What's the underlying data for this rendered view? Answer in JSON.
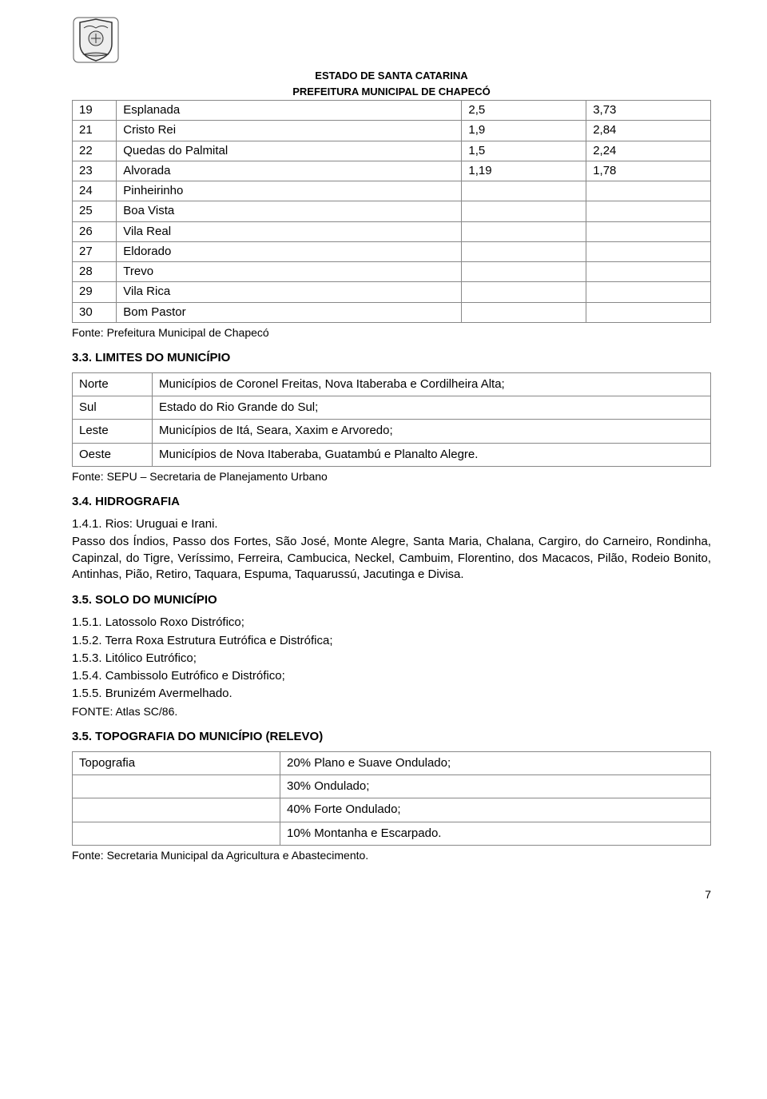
{
  "header": {
    "line1": "ESTADO DE SANTA CATARINA",
    "line2": "PREFEITURA MUNICIPAL DE CHAPECÓ"
  },
  "table1": {
    "rows": [
      [
        "19",
        "Esplanada",
        "2,5",
        "3,73"
      ],
      [
        "21",
        "Cristo Rei",
        "1,9",
        "2,84"
      ],
      [
        "22",
        "Quedas do Palmital",
        "1,5",
        "2,24"
      ],
      [
        "23",
        "Alvorada",
        "1,19",
        "1,78"
      ],
      [
        "24",
        "Pinheirinho",
        "",
        ""
      ],
      [
        "25",
        "Boa Vista",
        "",
        ""
      ],
      [
        "26",
        "Vila Real",
        "",
        ""
      ],
      [
        "27",
        "Eldorado",
        "",
        ""
      ],
      [
        "28",
        "Trevo",
        "",
        ""
      ],
      [
        "29",
        "Vila Rica",
        "",
        ""
      ],
      [
        "30",
        "Bom Pastor",
        "",
        ""
      ]
    ],
    "source": "Fonte: Prefeitura Municipal de Chapecó"
  },
  "sec33": {
    "title": "3.3.  LIMITES DO MUNICÍPIO",
    "rows": [
      [
        "Norte",
        "Municípios de Coronel Freitas, Nova Itaberaba e Cordilheira Alta;"
      ],
      [
        "Sul",
        "Estado do Rio Grande do Sul;"
      ],
      [
        "Leste",
        "Municípios de Itá, Seara, Xaxim e Arvoredo;"
      ],
      [
        "Oeste",
        "Municípios de Nova Itaberaba, Guatambú e Planalto Alegre."
      ]
    ],
    "source": "Fonte: SEPU – Secretaria de Planejamento Urbano"
  },
  "sec34": {
    "title": "3.4.  HIDROGRAFIA",
    "sub": "1.4.1.  Rios: Uruguai e Irani.",
    "body": "Passo dos Índios, Passo dos Fortes, São José, Monte Alegre, Santa Maria, Chalana, Cargiro, do Carneiro,   Rondinha, Capinzal, do Tigre, Veríssimo, Ferreira, Cambucica, Neckel, Cambuim, Florentino, dos Macacos, Pilão, Rodeio Bonito, Antinhas, Pião, Retiro, Taquara, Espuma, Taquarussú, Jacutinga e Divisa."
  },
  "sec35a": {
    "title": "3.5.  SOLO DO MUNICÍPIO",
    "items": [
      "1.5.1.  Latossolo Roxo Distrófico;",
      "1.5.2.  Terra Roxa Estrutura Eutrófica e Distrófica;",
      "1.5.3.  Litólico Eutrófico;",
      "1.5.4.  Cambissolo Eutrófico e Distrófico;",
      "1.5.5.  Brunizém Avermelhado."
    ],
    "source": "FONTE: Atlas SC/86."
  },
  "sec35b": {
    "title": "3.5.  TOPOGRAFIA DO MUNICÍPIO (RELEVO)",
    "label": "Topografia",
    "rows": [
      "20% Plano e Suave Ondulado;",
      "30% Ondulado;",
      "40% Forte Ondulado;",
      "10% Montanha e Escarpado."
    ],
    "source": "Fonte: Secretaria Municipal da Agricultura e Abastecimento."
  },
  "pagenum": "7"
}
